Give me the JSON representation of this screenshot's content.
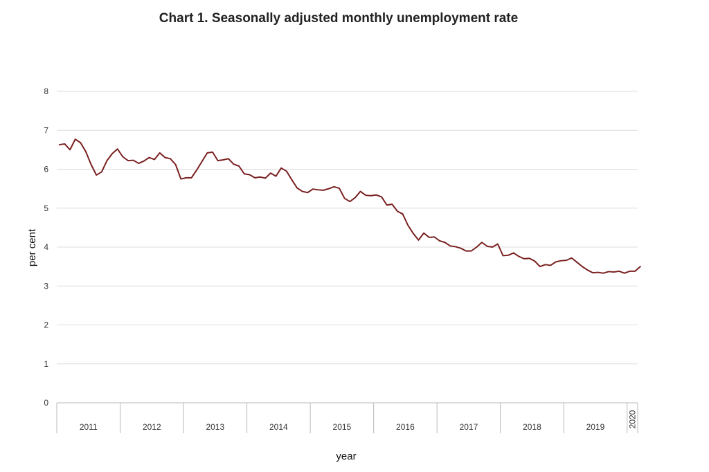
{
  "chart_data": {
    "type": "line",
    "title": "Chart 1. Seasonally adjusted monthly unemployment rate",
    "xlabel": "year",
    "ylabel": "per cent",
    "ylim": [
      0,
      8
    ],
    "yticks": [
      0,
      1,
      2,
      3,
      4,
      5,
      6,
      7,
      8
    ],
    "grid": true,
    "year_groups": [
      {
        "label": "2011",
        "months": 12
      },
      {
        "label": "2012",
        "months": 12
      },
      {
        "label": "2013",
        "months": 12
      },
      {
        "label": "2014",
        "months": 12
      },
      {
        "label": "2015",
        "months": 12
      },
      {
        "label": "2016",
        "months": 12
      },
      {
        "label": "2017",
        "months": 12
      },
      {
        "label": "2018",
        "months": 12
      },
      {
        "label": "2019",
        "months": 12
      },
      {
        "label": "2020",
        "months": 2
      }
    ],
    "series": [
      {
        "color": "#7a1f1f",
        "values": [
          6.63,
          6.65,
          6.5,
          6.77,
          6.68,
          6.45,
          6.12,
          5.85,
          5.93,
          6.22,
          6.4,
          6.52,
          6.32,
          6.22,
          6.23,
          6.15,
          6.21,
          6.3,
          6.25,
          6.42,
          6.3,
          6.27,
          6.12,
          5.75,
          5.78,
          5.78,
          5.98,
          6.2,
          6.42,
          6.44,
          6.22,
          6.24,
          6.27,
          6.13,
          6.08,
          5.88,
          5.86,
          5.78,
          5.8,
          5.77,
          5.9,
          5.82,
          6.03,
          5.95,
          5.73,
          5.52,
          5.43,
          5.4,
          5.49,
          5.47,
          5.46,
          5.5,
          5.55,
          5.51,
          5.25,
          5.17,
          5.27,
          5.43,
          5.33,
          5.32,
          5.34,
          5.29,
          5.08,
          5.1,
          4.92,
          4.85,
          4.56,
          4.35,
          4.18,
          4.36,
          4.25,
          4.26,
          4.16,
          4.12,
          4.03,
          4.01,
          3.97,
          3.9,
          3.9,
          4.0,
          4.12,
          4.02,
          4.0,
          4.08,
          3.78,
          3.79,
          3.85,
          3.76,
          3.7,
          3.71,
          3.64,
          3.5,
          3.55,
          3.53,
          3.62,
          3.65,
          3.66,
          3.72,
          3.61,
          3.5,
          3.41,
          3.34,
          3.35,
          3.33,
          3.37,
          3.36,
          3.38,
          3.33,
          3.38,
          3.38,
          3.5
        ]
      }
    ]
  }
}
